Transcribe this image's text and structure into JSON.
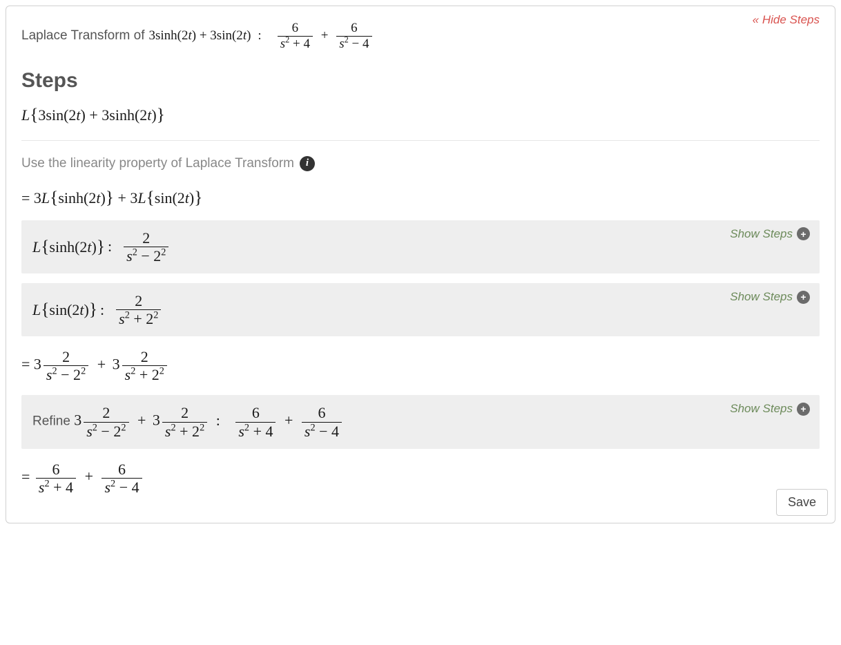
{
  "hideStepsLabel": "Hide Steps",
  "titlePrefix": "Laplace Transform of ",
  "titleMath": "3sinh(2<i>t</i>) + 3sin(2<i>t</i>)",
  "result": {
    "f1": {
      "num": "6",
      "den": "<i>s</i><sup>2</sup> + 4"
    },
    "f2": {
      "num": "6",
      "den": "<i>s</i><sup>2</sup> − 4"
    }
  },
  "stepsHeading": "Steps",
  "mainExpr": "<i>L</i>{ 3sin(2<i>t</i>) + 3sinh(2<i>t</i>) }",
  "hintText": "Use the linearity property of Laplace Transform",
  "linearityExpr": "= 3<i>L</i>{ sinh(2<i>t</i>) } + 3<i>L</i>{ sin(2<i>t</i>) }",
  "sub1": {
    "lhs": "<i>L</i>{ sinh(2<i>t</i>) }",
    "rhs": {
      "num": "2",
      "den": "<i>s</i><sup>2</sup> − 2<sup>2</sup>"
    }
  },
  "sub2": {
    "lhs": "<i>L</i>{ sin(2<i>t</i>) }",
    "rhs": {
      "num": "2",
      "den": "<i>s</i><sup>2</sup> + 2<sup>2</sup>"
    }
  },
  "combineExpr": {
    "f1": {
      "num": "2",
      "den": "<i>s</i><sup>2</sup> − 2<sup>2</sup>"
    },
    "f2": {
      "num": "2",
      "den": "<i>s</i><sup>2</sup> + 2<sup>2</sup>"
    }
  },
  "refine": {
    "prefix": "Refine ",
    "lhs": {
      "f1": {
        "num": "2",
        "den": "<i>s</i><sup>2</sup> − 2<sup>2</sup>"
      },
      "f2": {
        "num": "2",
        "den": "<i>s</i><sup>2</sup> + 2<sup>2</sup>"
      }
    },
    "rhs": {
      "f1": {
        "num": "6",
        "den": "<i>s</i><sup>2</sup> + 4"
      },
      "f2": {
        "num": "6",
        "den": "<i>s</i><sup>2</sup> − 4"
      }
    }
  },
  "finalExpr": {
    "f1": {
      "num": "6",
      "den": "<i>s</i><sup>2</sup> + 4"
    },
    "f2": {
      "num": "6",
      "den": "<i>s</i><sup>2</sup> − 4"
    }
  },
  "showStepsLabel": "Show Steps",
  "saveLabel": "Save",
  "infoGlyph": "i",
  "plusGlyph": "+"
}
